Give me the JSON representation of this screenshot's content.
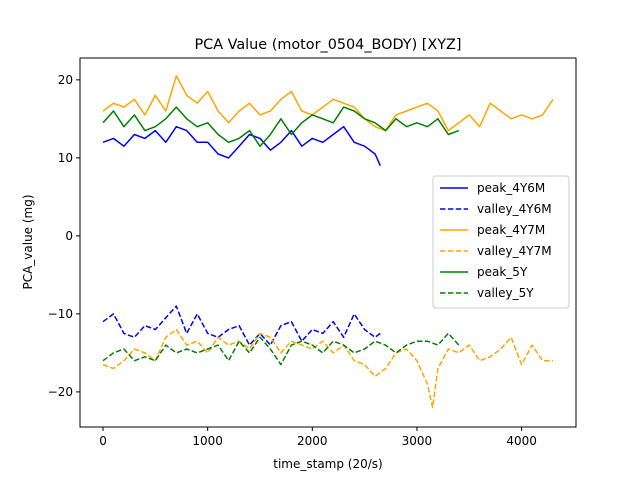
{
  "chart_data": {
    "type": "line",
    "title": "PCA Value (motor_0504_BODY) [XYZ]",
    "xlabel": "time_stamp (20/s)",
    "ylabel": "PCA_value (mg)",
    "xlim": [
      -220,
      4520
    ],
    "ylim": [
      -24.5,
      22.8
    ],
    "xticks": [
      0,
      1000,
      2000,
      3000,
      4000
    ],
    "yticks": [
      -20,
      -10,
      0,
      10,
      20
    ],
    "xtick_labels": [
      "0",
      "1000",
      "2000",
      "3000",
      "4000"
    ],
    "ytick_labels": [
      "−20",
      "−10",
      "0",
      "10",
      "20"
    ],
    "grid": false,
    "legend_position": "center-right",
    "series": [
      {
        "name": "peak_4Y6M",
        "color": "#0000ff",
        "style": "solid",
        "x": [
          0,
          100,
          200,
          300,
          400,
          500,
          600,
          700,
          800,
          900,
          1000,
          1100,
          1200,
          1300,
          1400,
          1500,
          1600,
          1700,
          1800,
          1900,
          2000,
          2100,
          2200,
          2300,
          2400,
          2500,
          2600,
          2650
        ],
        "y": [
          12,
          12.5,
          11.5,
          13,
          12.5,
          13.5,
          12,
          14,
          13.5,
          12,
          12,
          10.5,
          10,
          11.5,
          13,
          12.5,
          11,
          12,
          13.5,
          11.5,
          12.5,
          12,
          13,
          14,
          12,
          11.5,
          10.5,
          9
        ]
      },
      {
        "name": "valley_4Y6M",
        "color": "#0000ff",
        "style": "dashed",
        "x": [
          0,
          100,
          200,
          300,
          400,
          500,
          600,
          700,
          800,
          900,
          1000,
          1100,
          1200,
          1300,
          1400,
          1500,
          1600,
          1700,
          1800,
          1900,
          2000,
          2100,
          2200,
          2300,
          2400,
          2500,
          2600,
          2650
        ],
        "y": [
          -11,
          -10,
          -12.5,
          -13,
          -11.5,
          -12,
          -10.5,
          -9,
          -12.5,
          -10,
          -12.5,
          -13,
          -12,
          -11.5,
          -14,
          -12.5,
          -14,
          -11.5,
          -11,
          -13.5,
          -12,
          -12.5,
          -11,
          -13,
          -10,
          -12,
          -13,
          -12.5
        ]
      },
      {
        "name": "peak_4Y7M",
        "color": "#ffa500",
        "style": "solid",
        "x": [
          0,
          100,
          200,
          300,
          400,
          500,
          600,
          700,
          800,
          900,
          1000,
          1100,
          1200,
          1300,
          1400,
          1500,
          1600,
          1700,
          1800,
          1900,
          2000,
          2100,
          2200,
          2300,
          2400,
          2500,
          2600,
          2700,
          2800,
          2900,
          3000,
          3100,
          3200,
          3300,
          3400,
          3500,
          3600,
          3700,
          3800,
          3900,
          4000,
          4100,
          4200,
          4300
        ],
        "y": [
          16,
          17,
          16.5,
          17.5,
          15.5,
          18,
          16,
          20.5,
          18,
          17,
          18.5,
          16,
          14.5,
          16,
          17,
          15.5,
          16,
          17.5,
          18.5,
          16,
          15.5,
          16.5,
          17.5,
          17,
          16.5,
          15,
          14,
          13.5,
          15.5,
          16,
          16.5,
          17,
          16,
          13.5,
          14.5,
          15.5,
          14,
          17,
          16,
          15,
          15.5,
          15,
          15.5,
          17.5
        ]
      },
      {
        "name": "valley_4Y7M",
        "color": "#ffa500",
        "style": "dashed",
        "x": [
          0,
          100,
          200,
          300,
          400,
          500,
          600,
          700,
          800,
          900,
          1000,
          1100,
          1200,
          1300,
          1400,
          1500,
          1600,
          1700,
          1800,
          1900,
          2000,
          2100,
          2200,
          2300,
          2400,
          2500,
          2600,
          2700,
          2800,
          2900,
          3000,
          3100,
          3150,
          3200,
          3300,
          3400,
          3500,
          3600,
          3700,
          3800,
          3900,
          4000,
          4100,
          4200,
          4300
        ],
        "y": [
          -16.5,
          -17,
          -16,
          -14.5,
          -15,
          -16,
          -13,
          -12,
          -14,
          -13.5,
          -15,
          -13,
          -14,
          -13.5,
          -14.5,
          -12.5,
          -13,
          -15,
          -13.5,
          -14,
          -14.5,
          -13.5,
          -15,
          -14,
          -16,
          -16.5,
          -18,
          -17,
          -15,
          -14.5,
          -16,
          -19,
          -22,
          -17,
          -14.5,
          -15,
          -14,
          -16,
          -15.5,
          -14.5,
          -13,
          -16.5,
          -14,
          -16,
          -16
        ]
      },
      {
        "name": "peak_5Y",
        "color": "#008000",
        "style": "solid",
        "x": [
          0,
          100,
          200,
          300,
          400,
          500,
          600,
          700,
          800,
          900,
          1000,
          1100,
          1200,
          1300,
          1400,
          1500,
          1600,
          1700,
          1800,
          1900,
          2000,
          2100,
          2200,
          2300,
          2400,
          2500,
          2600,
          2700,
          2800,
          2900,
          3000,
          3100,
          3200,
          3300,
          3400
        ],
        "y": [
          14.5,
          16,
          14,
          15.5,
          13.5,
          14,
          15,
          16.5,
          15,
          14,
          14.5,
          13,
          12,
          12.5,
          13.5,
          11.5,
          13,
          15,
          13,
          14.5,
          15.5,
          15,
          14.5,
          16.5,
          16,
          15,
          14.5,
          13.5,
          15,
          14,
          14.5,
          14,
          15,
          13,
          13.5
        ]
      },
      {
        "name": "valley_5Y",
        "color": "#008000",
        "style": "dashed",
        "x": [
          0,
          100,
          200,
          300,
          400,
          500,
          600,
          700,
          800,
          900,
          1000,
          1100,
          1200,
          1300,
          1400,
          1500,
          1600,
          1700,
          1800,
          1900,
          2000,
          2100,
          2200,
          2300,
          2400,
          2500,
          2600,
          2700,
          2800,
          2900,
          3000,
          3100,
          3200,
          3300,
          3400
        ],
        "y": [
          -16,
          -15,
          -14.5,
          -16,
          -15.5,
          -16,
          -14,
          -15,
          -14.5,
          -15,
          -14.5,
          -14,
          -16,
          -13.5,
          -15,
          -13,
          -14.5,
          -16.5,
          -14,
          -13.5,
          -14,
          -15,
          -13.5,
          -14,
          -15,
          -14.5,
          -13.5,
          -14,
          -15,
          -14,
          -13.5,
          -13.5,
          -14,
          -12.5,
          -14
        ]
      }
    ]
  }
}
